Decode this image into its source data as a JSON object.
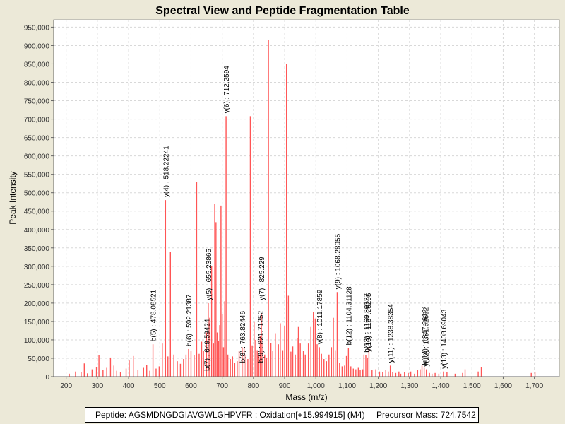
{
  "chart_data": {
    "type": "bar",
    "title": "Spectral View and Peptide Fragmentation Table",
    "xlabel": "Mass (m/z)",
    "ylabel": "Peak Intensity",
    "xlim": [
      160,
      1780
    ],
    "ylim": [
      0,
      970000
    ],
    "x_ticks": [
      "200",
      "300",
      "400",
      "500",
      "600",
      "700",
      "800",
      "900",
      "1,000",
      "1,100",
      "1,200",
      "1,300",
      "1,400",
      "1,500",
      "1,600",
      "1,700"
    ],
    "x_tick_values": [
      200,
      300,
      400,
      500,
      600,
      700,
      800,
      900,
      1000,
      1100,
      1200,
      1300,
      1400,
      1500,
      1600,
      1700
    ],
    "y_ticks": [
      "0",
      "50,000",
      "100,000",
      "150,000",
      "200,000",
      "250,000",
      "300,000",
      "350,000",
      "400,000",
      "450,000",
      "500,000",
      "550,000",
      "600,000",
      "650,000",
      "700,000",
      "750,000",
      "800,000",
      "850,000",
      "900,000",
      "950,000"
    ],
    "y_tick_values": [
      0,
      50000,
      100000,
      150000,
      200000,
      250000,
      300000,
      350000,
      400000,
      450000,
      500000,
      550000,
      600000,
      650000,
      700000,
      750000,
      800000,
      850000,
      900000,
      950000
    ],
    "peaks": [
      [
        210,
        8000
      ],
      [
        230,
        14000
      ],
      [
        248,
        12000
      ],
      [
        258,
        36000
      ],
      [
        268,
        9000
      ],
      [
        283,
        20000
      ],
      [
        297,
        26000
      ],
      [
        305,
        58000
      ],
      [
        318,
        18000
      ],
      [
        330,
        24000
      ],
      [
        342,
        52000
      ],
      [
        353,
        30000
      ],
      [
        362,
        16000
      ],
      [
        374,
        13000
      ],
      [
        392,
        22000
      ],
      [
        402,
        44000
      ],
      [
        415,
        56000
      ],
      [
        430,
        18000
      ],
      [
        448,
        24000
      ],
      [
        458,
        32000
      ],
      [
        468,
        16000
      ],
      [
        478.08521,
        88000
      ],
      [
        488,
        22000
      ],
      [
        498,
        28000
      ],
      [
        508,
        90000
      ],
      [
        518.22241,
        480000
      ],
      [
        526,
        55000
      ],
      [
        534,
        338000
      ],
      [
        545,
        60000
      ],
      [
        556,
        42000
      ],
      [
        566,
        35000
      ],
      [
        576,
        48000
      ],
      [
        584,
        60000
      ],
      [
        592.21387,
        75000
      ],
      [
        600,
        70000
      ],
      [
        610,
        58000
      ],
      [
        618,
        530000
      ],
      [
        626,
        62000
      ],
      [
        634,
        95000
      ],
      [
        640,
        70000
      ],
      [
        649.59424,
        120000
      ],
      [
        655.23865,
        200000
      ],
      [
        660,
        160000
      ],
      [
        666,
        300000
      ],
      [
        672,
        90000
      ],
      [
        676,
        470000
      ],
      [
        680,
        420000
      ],
      [
        684,
        120000
      ],
      [
        688,
        98000
      ],
      [
        692,
        140000
      ],
      [
        696,
        465000
      ],
      [
        700,
        170000
      ],
      [
        704,
        80000
      ],
      [
        708,
        205000
      ],
      [
        712.2594,
        708000
      ],
      [
        718,
        60000
      ],
      [
        726,
        48000
      ],
      [
        733,
        55000
      ],
      [
        740,
        38000
      ],
      [
        748,
        42000
      ],
      [
        754,
        70000
      ],
      [
        763.82446,
        80000
      ],
      [
        770,
        78000
      ],
      [
        776,
        60000
      ],
      [
        782,
        48000
      ],
      [
        790,
        708000
      ],
      [
        796,
        85000
      ],
      [
        802,
        150000
      ],
      [
        807,
        100000
      ],
      [
        812,
        72000
      ],
      [
        817,
        60000
      ],
      [
        821.71252,
        110000
      ],
      [
        825.229,
        170000
      ],
      [
        830,
        90000
      ],
      [
        836,
        60000
      ],
      [
        842,
        52000
      ],
      [
        848,
        916000
      ],
      [
        856,
        92000
      ],
      [
        862,
        70000
      ],
      [
        870,
        118000
      ],
      [
        880,
        88000
      ],
      [
        886,
        145000
      ],
      [
        894,
        72000
      ],
      [
        900,
        138000
      ],
      [
        906,
        850000
      ],
      [
        912,
        220000
      ],
      [
        920,
        68000
      ],
      [
        926,
        82000
      ],
      [
        934,
        60000
      ],
      [
        940,
        105000
      ],
      [
        944,
        135000
      ],
      [
        950,
        90000
      ],
      [
        960,
        70000
      ],
      [
        966,
        60000
      ],
      [
        976,
        90000
      ],
      [
        984,
        135000
      ],
      [
        992,
        175000
      ],
      [
        998,
        158000
      ],
      [
        1004,
        88000
      ],
      [
        1011.17859,
        80000
      ],
      [
        1018,
        62000
      ],
      [
        1026,
        48000
      ],
      [
        1034,
        42000
      ],
      [
        1042,
        60000
      ],
      [
        1050,
        80000
      ],
      [
        1056,
        160000
      ],
      [
        1062,
        72000
      ],
      [
        1068.28955,
        230000
      ],
      [
        1076,
        38000
      ],
      [
        1084,
        28000
      ],
      [
        1092,
        30000
      ],
      [
        1098,
        56000
      ],
      [
        1104.31128,
        78000
      ],
      [
        1112,
        28000
      ],
      [
        1120,
        22000
      ],
      [
        1128,
        20000
      ],
      [
        1136,
        24000
      ],
      [
        1142,
        18000
      ],
      [
        1150,
        20000
      ],
      [
        1154,
        60000
      ],
      [
        1160,
        58000
      ],
      [
        1165,
        52000
      ],
      [
        1170,
        80000
      ],
      [
        1180,
        18000
      ],
      [
        1192,
        20000
      ],
      [
        1204,
        14000
      ],
      [
        1214,
        12000
      ],
      [
        1224,
        18000
      ],
      [
        1232,
        14000
      ],
      [
        1238.38354,
        30000
      ],
      [
        1246,
        12000
      ],
      [
        1256,
        10000
      ],
      [
        1266,
        14000
      ],
      [
        1272,
        8000
      ],
      [
        1284,
        12000
      ],
      [
        1296,
        10000
      ],
      [
        1304,
        14000
      ],
      [
        1316,
        8000
      ],
      [
        1326,
        18000
      ],
      [
        1334,
        20000
      ],
      [
        1340,
        30000
      ],
      [
        1347,
        24000
      ],
      [
        1354,
        20000
      ],
      [
        1364,
        10000
      ],
      [
        1372,
        8000
      ],
      [
        1382,
        10000
      ],
      [
        1394,
        8000
      ],
      [
        1408.69043,
        14000
      ],
      [
        1420,
        12000
      ],
      [
        1446,
        8000
      ],
      [
        1470,
        10000
      ],
      [
        1478,
        20000
      ],
      [
        1520,
        14000
      ],
      [
        1530,
        26000
      ],
      [
        1690,
        10000
      ],
      [
        1702,
        12000
      ]
    ],
    "annotations": [
      {
        "label": "b(5) : 478.08521",
        "x": 478.08521,
        "y": 88000
      },
      {
        "label": "y(4) : 518.22241",
        "x": 518.22241,
        "y": 480000
      },
      {
        "label": "b(6) : 592.21387",
        "x": 592.21387,
        "y": 75000
      },
      {
        "label": "b(7) : 649.59424",
        "x": 649.59424,
        "y": 8000
      },
      {
        "label": "y(5) : 655.23865",
        "x": 655.23865,
        "y": 200000
      },
      {
        "label": "y(6) : 712.2594",
        "x": 712.2594,
        "y": 708000
      },
      {
        "label": "b(8) : 763.82446",
        "x": 763.82446,
        "y": 30000
      },
      {
        "label": "b(9) : 821.71252",
        "x": 821.71252,
        "y": 30000
      },
      {
        "label": "y(7) : 825.229",
        "x": 825.229,
        "y": 200000
      },
      {
        "label": "y(8) : 1011.17859",
        "x": 1011.17859,
        "y": 80000
      },
      {
        "label": "y(9) : 1068.28955",
        "x": 1068.28955,
        "y": 230000
      },
      {
        "label": "b(12) : 1104.31128",
        "x": 1104.31128,
        "y": 78000
      },
      {
        "label": "b(13) : 1160.80127",
        "x": 1160.80127,
        "y": 58000
      },
      {
        "label": "y(10) : 1167.25295",
        "x": 1167.25295,
        "y": 60000
      },
      {
        "label": "y(11) : 1238.38354",
        "x": 1238.38354,
        "y": 30000
      },
      {
        "label": "b(14) : 1347.96191",
        "x": 1347.96191,
        "y": 24000
      },
      {
        "label": "y(12) : 1351.62632",
        "x": 1351.62632,
        "y": 20000
      },
      {
        "label": "y(13) : 1408.69043",
        "x": 1408.69043,
        "y": 14000
      }
    ],
    "bar_color": "#ff5555",
    "grid": true
  },
  "footer": {
    "peptide": "Peptide: AGSMDNGDGIAVGWLGHPVFR : Oxidation[+15.994915] (M4)",
    "precursor": "Precursor Mass: 724.7542"
  }
}
